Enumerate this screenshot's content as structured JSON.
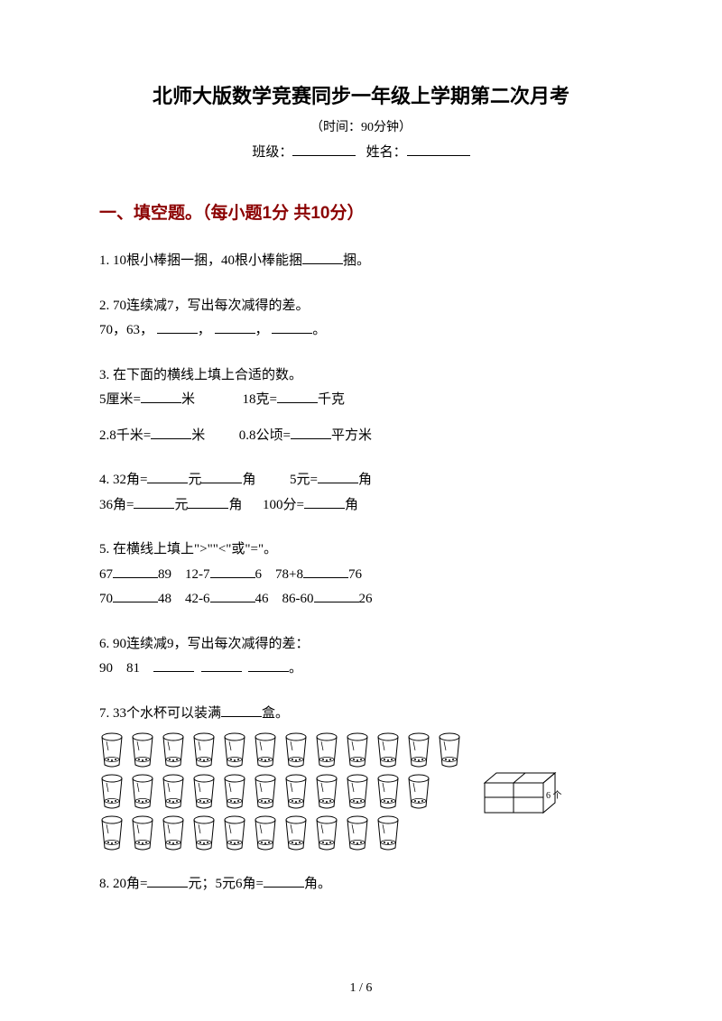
{
  "title": "北师大版数学竞赛同步一年级上学期第二次月考",
  "time_label": "（时间：90分钟）",
  "class_label": "班级：",
  "name_label": "姓名：",
  "section1": {
    "header": "一、填空题。（每小题1分 共10分）",
    "q1": {
      "prefix": "1. 10根小棒捆一捆，40根小棒能捆",
      "suffix": "捆。"
    },
    "q2": {
      "line1": "2. 70连续减7，写出每次减得的差。",
      "line2_prefix": "70，63，",
      "sep": "，",
      "end": "。"
    },
    "q3": {
      "line1": "3. 在下面的横线上填上合适的数。",
      "line2_a": "5厘米=",
      "line2_b": "米",
      "line2_gap": "　　　",
      "line2_c": "18克=",
      "line2_d": "千克",
      "line3_a": "2.8千米=",
      "line3_b": "米",
      "line3_gap": "　　",
      "line3_c": "0.8公顷=",
      "line3_d": "平方米"
    },
    "q4": {
      "line1_a": "4. 32角=",
      "line1_b": "元",
      "line1_c": "角",
      "line1_gap": "　　",
      "line1_d": "5元=",
      "line1_e": "角",
      "line2_a": "36角=",
      "line2_b": "元",
      "line2_c": "角",
      "line2_gap": "　",
      "line2_d": "100分=",
      "line2_e": "角"
    },
    "q5": {
      "line1": "5. 在横线上填上\">\"\"<\"或\"=\"。",
      "row1": {
        "a": "67",
        "b": "89",
        "c": "12-7",
        "d": "6",
        "e": "78+8",
        "f": "76"
      },
      "row2": {
        "a": "70",
        "b": "48",
        "c": "42-6",
        "d": "46",
        "e": "86-60",
        "f": "26"
      }
    },
    "q6": {
      "line1": "6. 90连续减9，写出每次减得的差：",
      "line2_a": "90",
      "line2_b": "81",
      "end": "。"
    },
    "q7": {
      "prefix": "7. 33个水杯可以装满",
      "suffix": "盒。",
      "cup_rows": [
        12,
        11,
        10
      ],
      "box_label": "6 个"
    },
    "q8": {
      "a": "8. 20角=",
      "b": "元；5元6角=",
      "c": "角。"
    }
  },
  "footer": "1 / 6",
  "colors": {
    "header": "#8b0000",
    "text": "#000000",
    "bg": "#ffffff"
  }
}
